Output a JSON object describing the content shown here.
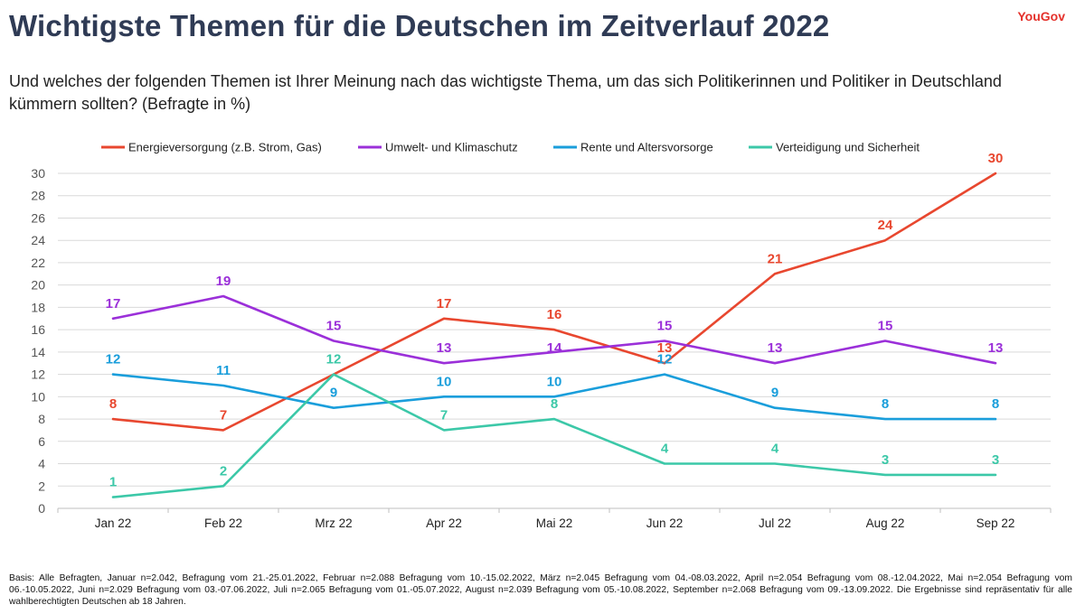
{
  "title": "Wichtigste Themen für die Deutschen im Zeitverlauf 2022",
  "brand": "YouGov",
  "subtitle": "Und welches der folgenden Themen ist Ihrer Meinung nach das wichtigste Thema, um das sich Politikerinnen und Politiker in Deutschland kümmern sollten? (Befragte in %)",
  "footnote": "Basis: Alle Befragten, Januar n=2.042, Befragung vom 21.-25.01.2022, Februar n=2.088 Befragung vom 10.-15.02.2022, März n=2.045 Befragung vom 04.-08.03.2022, April n=2.054 Befragung vom 08.-12.04.2022, Mai n=2.054 Befragung vom 06.-10.05.2022, Juni n=2.029 Befragung vom 03.-07.06.2022, Juli n=2.065 Befragung vom 01.-05.07.2022, August n=2.039 Befragung vom 05.-10.08.2022, September n=2.068 Befragung vom 09.-13.09.2022. Die Ergebnisse sind repräsentativ für alle wahlberechtigten Deutschen ab 18 Jahren.",
  "chart_data": {
    "type": "line",
    "title": "Wichtigste Themen für die Deutschen im Zeitverlauf 2022",
    "xlabel": "",
    "ylabel": "",
    "categories": [
      "Jan 22",
      "Feb 22",
      "Mrz 22",
      "Apr 22",
      "Mai 22",
      "Jun 22",
      "Jul 22",
      "Aug 22",
      "Sep 22"
    ],
    "ylim": [
      0,
      30
    ],
    "yticks": [
      0,
      2,
      4,
      6,
      8,
      10,
      12,
      14,
      16,
      18,
      20,
      22,
      24,
      26,
      28,
      30
    ],
    "grid": true,
    "legend": "top",
    "series": [
      {
        "name": "Energieversorgung (z.B. Strom, Gas)",
        "color": "#e8472f",
        "values": [
          8,
          7,
          12,
          17,
          16,
          13,
          21,
          24,
          30
        ],
        "labeled": [
          true,
          true,
          false,
          true,
          true,
          true,
          true,
          true,
          true
        ]
      },
      {
        "name": "Umwelt- und Klimaschutz",
        "color": "#9b30d9",
        "values": [
          17,
          19,
          15,
          13,
          14,
          15,
          13,
          15,
          13
        ],
        "labeled": [
          true,
          true,
          true,
          true,
          true,
          true,
          true,
          true,
          true
        ]
      },
      {
        "name": "Rente und Altersvorsorge",
        "color": "#1a9edb",
        "values": [
          12,
          11,
          9,
          10,
          10,
          12,
          9,
          8,
          8
        ],
        "labeled": [
          true,
          true,
          true,
          true,
          true,
          true,
          true,
          true,
          true
        ]
      },
      {
        "name": "Verteidigung und Sicherheit",
        "color": "#3cc8a8",
        "values": [
          1,
          2,
          12,
          7,
          8,
          4,
          4,
          3,
          3
        ],
        "labeled": [
          true,
          true,
          true,
          true,
          true,
          true,
          true,
          true,
          true
        ]
      }
    ]
  }
}
